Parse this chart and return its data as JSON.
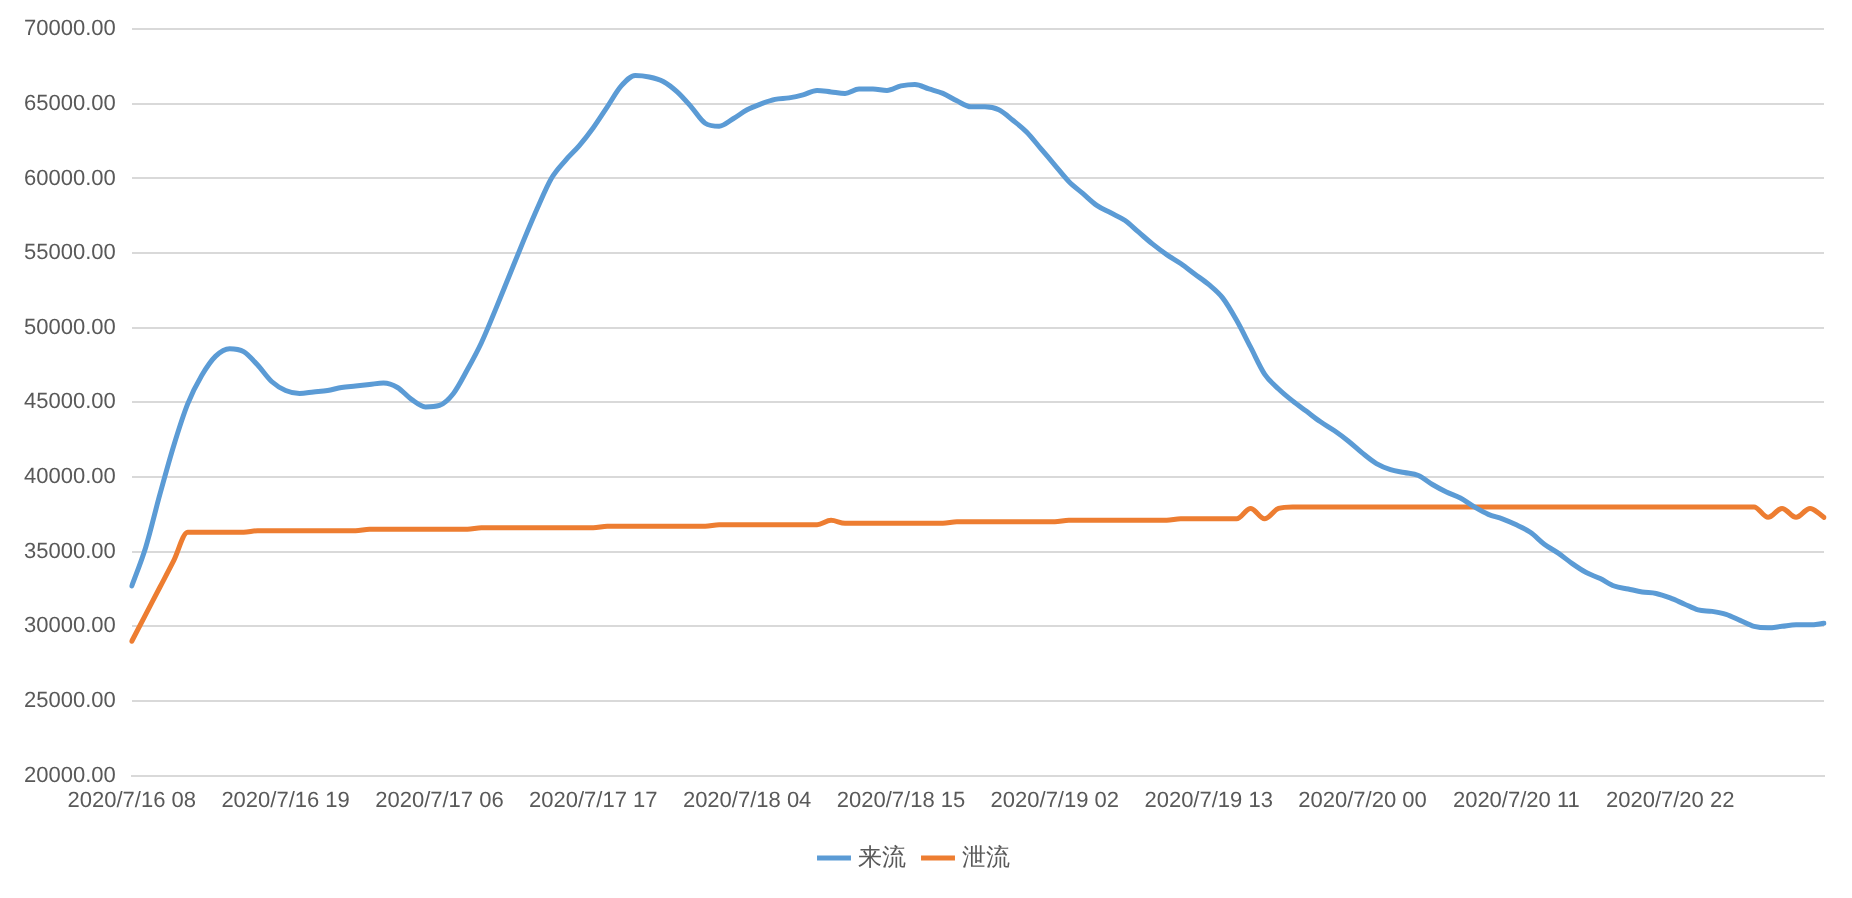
{
  "chart_data": {
    "type": "line",
    "categories": [
      "2020/7/16 08",
      null,
      null,
      null,
      null,
      null,
      null,
      null,
      null,
      null,
      null,
      "2020/7/16 19",
      null,
      null,
      null,
      null,
      null,
      null,
      null,
      null,
      null,
      null,
      "2020/7/17 06",
      null,
      null,
      null,
      null,
      null,
      null,
      null,
      null,
      null,
      null,
      "2020/7/17 17",
      null,
      null,
      null,
      null,
      null,
      null,
      null,
      null,
      null,
      null,
      "2020/7/18 04",
      null,
      null,
      null,
      null,
      null,
      null,
      null,
      null,
      null,
      null,
      "2020/7/18 15",
      null,
      null,
      null,
      null,
      null,
      null,
      null,
      null,
      null,
      null,
      "2020/7/19 02",
      null,
      null,
      null,
      null,
      null,
      null,
      null,
      null,
      null,
      null,
      "2020/7/19 13",
      null,
      null,
      null,
      null,
      null,
      null,
      null,
      null,
      null,
      null,
      "2020/7/20 00",
      null,
      null,
      null,
      null,
      null,
      null,
      null,
      null,
      null,
      null,
      "2020/7/20 11",
      null,
      null,
      null,
      null,
      null,
      null,
      null,
      null,
      null,
      null,
      "2020/7/20 22",
      null,
      null,
      null,
      null,
      null,
      null,
      null,
      null,
      null,
      null,
      null
    ],
    "series": [
      {
        "name": "来流",
        "color": "#5b9bd5",
        "values": [
          32700,
          35300,
          38800,
          42100,
          44900,
          46800,
          48100,
          48600,
          48400,
          47500,
          46400,
          45800,
          45600,
          45700,
          45800,
          46000,
          46100,
          46200,
          46300,
          46000,
          45200,
          44700,
          44800,
          45600,
          47200,
          49000,
          51200,
          53500,
          55800,
          58000,
          60000,
          61200,
          62200,
          63400,
          64800,
          66200,
          66900,
          66800,
          66500,
          65800,
          64800,
          63700,
          63500,
          64000,
          64600,
          65000,
          65300,
          65400,
          65600,
          65900,
          65800,
          65700,
          66000,
          66000,
          65900,
          66200,
          66300,
          66000,
          65700,
          65200,
          64800,
          64800,
          64600,
          63900,
          63100,
          62000,
          60900,
          59800,
          59000,
          58200,
          57700,
          57200,
          56400,
          55600,
          54900,
          54300,
          53600,
          52900,
          52000,
          50500,
          48700,
          46900,
          45900,
          45100,
          44400,
          43700,
          43100,
          42400,
          41600,
          40900,
          40500,
          40300,
          40100,
          39500,
          39000,
          38600,
          38000,
          37500,
          37200,
          36800,
          36300,
          35500,
          34900,
          34200,
          33600,
          33200,
          32700,
          32500,
          32300,
          32200,
          31900,
          31500,
          31100,
          31000,
          30800,
          30400,
          30000,
          29900,
          30000,
          30100,
          30100,
          30200
        ]
      },
      {
        "name": "泄流",
        "color": "#ed7d31",
        "values": [
          29000,
          30800,
          32600,
          34400,
          36300,
          36300,
          36300,
          36300,
          36300,
          36400,
          36400,
          36400,
          36400,
          36400,
          36400,
          36400,
          36400,
          36500,
          36500,
          36500,
          36500,
          36500,
          36500,
          36500,
          36500,
          36600,
          36600,
          36600,
          36600,
          36600,
          36600,
          36600,
          36600,
          36600,
          36700,
          36700,
          36700,
          36700,
          36700,
          36700,
          36700,
          36700,
          36800,
          36800,
          36800,
          36800,
          36800,
          36800,
          36800,
          36800,
          37100,
          36900,
          36900,
          36900,
          36900,
          36900,
          36900,
          36900,
          36900,
          37000,
          37000,
          37000,
          37000,
          37000,
          37000,
          37000,
          37000,
          37100,
          37100,
          37100,
          37100,
          37100,
          37100,
          37100,
          37100,
          37200,
          37200,
          37200,
          37200,
          37200,
          37900,
          37200,
          37900,
          38000,
          38000,
          38000,
          38000,
          38000,
          38000,
          38000,
          38000,
          38000,
          38000,
          38000,
          38000,
          38000,
          38000,
          38000,
          38000,
          38000,
          38000,
          38000,
          38000,
          38000,
          38000,
          38000,
          38000,
          38000,
          38000,
          38000,
          38000,
          38000,
          38000,
          38000,
          38000,
          38000,
          38000,
          37300,
          37900,
          37300,
          37900,
          37300
        ]
      }
    ],
    "ylim": [
      20000,
      70000
    ],
    "yticks": [
      {
        "value": 20000,
        "label": "20000.00"
      },
      {
        "value": 25000,
        "label": "25000.00"
      },
      {
        "value": 30000,
        "label": "30000.00"
      },
      {
        "value": 35000,
        "label": "35000.00"
      },
      {
        "value": 40000,
        "label": "40000.00"
      },
      {
        "value": 45000,
        "label": "45000.00"
      },
      {
        "value": 50000,
        "label": "50000.00"
      },
      {
        "value": 55000,
        "label": "55000.00"
      },
      {
        "value": 60000,
        "label": "60000.00"
      },
      {
        "value": 65000,
        "label": "65000.00"
      },
      {
        "value": 70000,
        "label": "70000.00"
      }
    ],
    "grid": "y",
    "legend": "bottom",
    "marker": "none",
    "line_style": "solid"
  }
}
